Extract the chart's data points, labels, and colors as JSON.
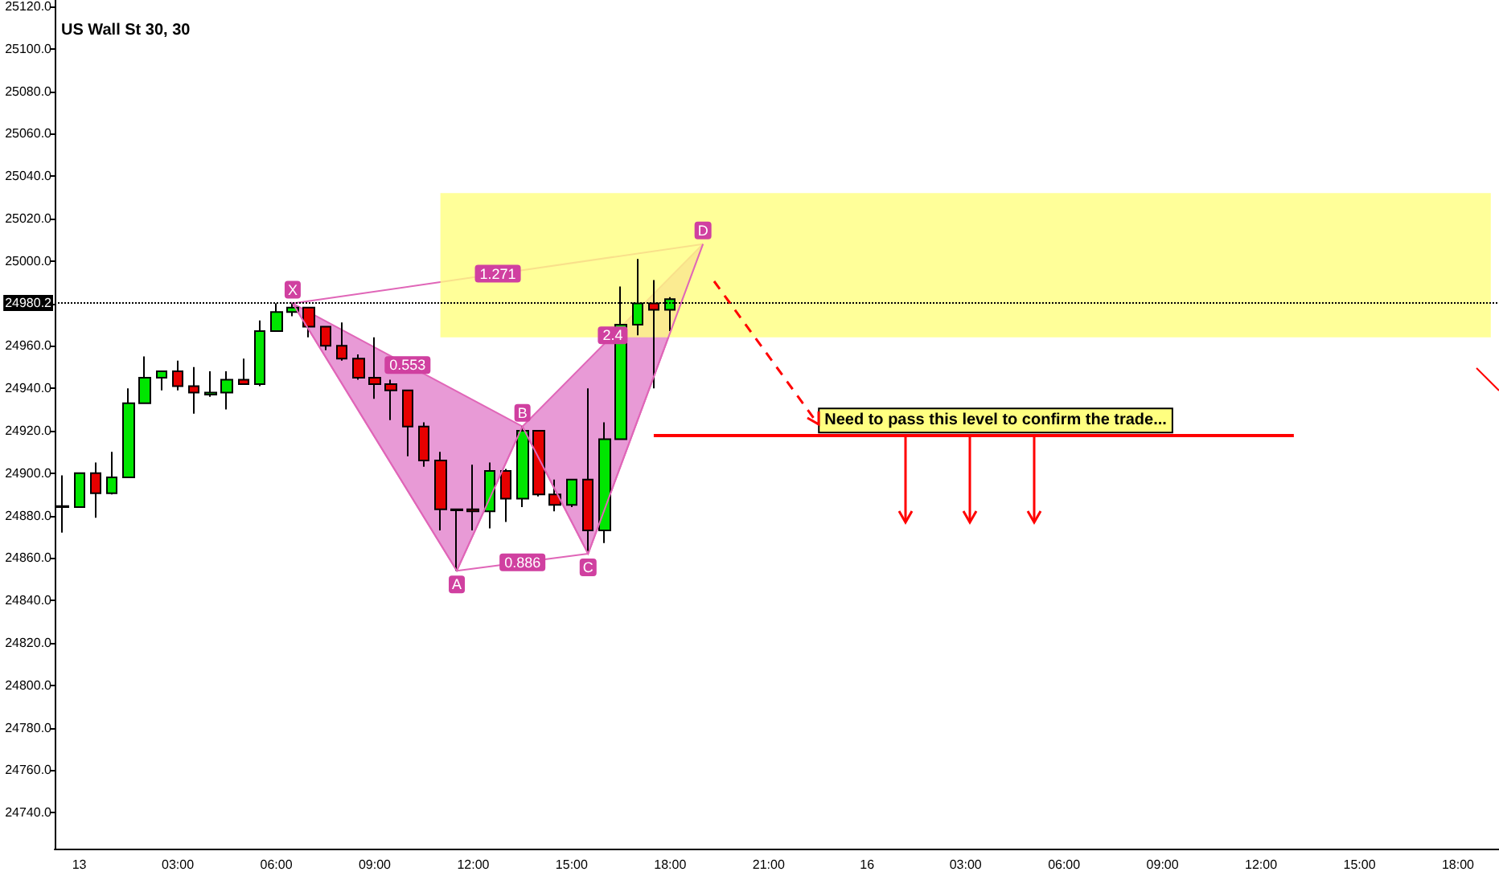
{
  "chart_data": {
    "type": "candlestick",
    "title": "US Wall St 30, 30",
    "categories": [
      null,
      "13",
      null,
      null,
      null,
      null,
      null,
      "03:00",
      null,
      null,
      null,
      null,
      null,
      "06:00",
      null,
      null,
      null,
      null,
      null,
      "09:00",
      null,
      null,
      null,
      null,
      null,
      "12:00",
      null,
      null,
      null,
      null,
      null,
      "15:00",
      null,
      null,
      null,
      null,
      null,
      "18:00",
      null,
      null,
      null,
      null,
      null,
      "21:00",
      null,
      null,
      null,
      null,
      null,
      "16",
      null,
      null,
      null,
      null,
      null,
      "03:00",
      null,
      null,
      null,
      null,
      null,
      "06:00",
      null,
      null,
      null,
      null,
      null,
      "09:00",
      null,
      null,
      null,
      null,
      null,
      "12:00",
      null,
      null,
      null,
      null,
      null,
      "15:00",
      null,
      null,
      null,
      null,
      null,
      "18:00",
      null,
      null
    ],
    "ohlc": [
      [
        24884,
        24899,
        24872,
        24884.5
      ],
      [
        24884,
        24900,
        24884,
        24900
      ],
      [
        24900,
        24905,
        24879,
        24890.5
      ],
      [
        24890.5,
        24910,
        24890,
        24898
      ],
      [
        24898,
        24940,
        24898,
        24933
      ],
      [
        24933,
        24955,
        24933,
        24945
      ],
      [
        24945,
        24948,
        24939,
        24948
      ],
      [
        24948,
        24953,
        24939,
        24941
      ],
      [
        24941,
        24950,
        24928,
        24938
      ],
      [
        24937,
        24948,
        24936,
        24938
      ],
      [
        24938,
        24948,
        24930,
        24944
      ],
      [
        24944,
        24954,
        24942,
        24942
      ],
      [
        24942,
        24972,
        24941,
        24967
      ],
      [
        24967,
        24980,
        24967,
        24976
      ],
      [
        24976,
        24980,
        24974,
        24978
      ],
      [
        24978,
        24978,
        24964,
        24969
      ],
      [
        24969,
        24969,
        24958,
        24960
      ],
      [
        24960,
        24971,
        24953,
        24954
      ],
      [
        24954,
        24956,
        24944,
        24945
      ],
      [
        24945,
        24964,
        24935,
        24942
      ],
      [
        24942,
        24944,
        24925,
        24939
      ],
      [
        24939,
        24939,
        24908,
        24922
      ],
      [
        24922,
        24924,
        24903,
        24906
      ],
      [
        24906,
        24910,
        24873,
        24883
      ],
      [
        24883,
        24883,
        24854,
        24882.5
      ],
      [
        24883,
        24904,
        24873,
        24882
      ],
      [
        24882,
        24905,
        24874,
        24901
      ],
      [
        24901,
        24902,
        24877,
        24888
      ],
      [
        24888,
        24922,
        24884,
        24920
      ],
      [
        24920,
        24920,
        24889,
        24890
      ],
      [
        24890,
        24897,
        24882,
        24885
      ],
      [
        24885,
        24897,
        24884,
        24897
      ],
      [
        24897,
        24940,
        24862,
        24873
      ],
      [
        24873,
        24924,
        24867,
        24916
      ],
      [
        24916,
        24988,
        24916,
        24970
      ],
      [
        24970,
        25001,
        24965,
        24980
      ],
      [
        24980,
        24991,
        24940,
        24977
      ],
      [
        24977,
        24983,
        24967,
        24982
      ],
      null,
      null,
      null,
      null,
      null,
      null,
      null,
      null,
      null,
      null,
      null,
      null,
      null,
      null,
      null,
      null,
      null,
      null,
      null,
      null,
      null,
      null,
      null,
      null,
      null,
      null,
      null,
      null,
      null,
      null,
      null,
      null,
      null,
      null,
      null,
      null,
      null,
      null,
      null,
      null,
      null,
      null,
      null,
      null,
      null,
      null,
      null,
      null,
      null,
      null
    ],
    "colors": [
      "#00e600",
      "#00e600",
      "#e60000",
      "#00e600",
      "#00e600",
      "#00e600",
      "#00e600",
      "#e60000",
      "#e60000",
      "#00e600",
      "#00e600",
      "#e60000",
      "#00e600",
      "#00e600",
      "#00e600",
      "#e60000",
      "#e60000",
      "#e60000",
      "#e60000",
      "#e60000",
      "#e60000",
      "#e60000",
      "#e60000",
      "#e60000",
      "#e60000",
      "#e60000",
      "#00e600",
      "#e60000",
      "#00e600",
      "#e60000",
      "#e60000",
      "#00e600",
      "#e60000",
      "#00e600",
      "#00e600",
      "#00e600",
      "#e60000",
      "#00e600",
      null,
      null,
      null,
      null,
      null,
      null,
      null,
      null,
      null,
      null,
      null,
      null,
      null,
      null,
      null,
      null,
      null,
      null,
      null,
      null,
      null,
      null,
      null,
      null,
      null,
      null,
      null,
      null,
      null,
      null,
      null,
      null,
      null,
      null,
      null,
      null,
      null,
      null,
      null,
      null,
      null,
      null,
      null,
      null,
      null,
      null,
      null,
      null,
      null,
      null
    ],
    "series": [
      {
        "type": "line",
        "color": "#e066b8",
        "values": [
          null,
          null,
          null,
          null,
          null,
          null,
          null,
          null,
          null,
          null,
          null,
          null,
          null,
          null,
          24980,
          null,
          null,
          null,
          null,
          null,
          null,
          null,
          null,
          null,
          24854,
          null,
          null,
          null,
          24922,
          null,
          null,
          null,
          24862,
          null,
          null,
          null,
          null,
          null,
          null,
          25008,
          null,
          null,
          null,
          null,
          null,
          null,
          null,
          null,
          null,
          null,
          null,
          null,
          null,
          null,
          null,
          null,
          null,
          null,
          null,
          null,
          null,
          null,
          null,
          null,
          null,
          null,
          null,
          null,
          null,
          null,
          null,
          null,
          null,
          null,
          null,
          null,
          null,
          null,
          null,
          null,
          null,
          null,
          null,
          null,
          null,
          null,
          null,
          null
        ],
        "value_labels": [
          null,
          null,
          null,
          null,
          null,
          null,
          null,
          null,
          null,
          null,
          null,
          null,
          null,
          null,
          "X",
          null,
          null,
          null,
          null,
          null,
          null,
          null,
          null,
          null,
          "A",
          null,
          null,
          null,
          "B",
          null,
          null,
          null,
          "C",
          null,
          null,
          null,
          null,
          null,
          null,
          "D",
          null,
          null,
          null,
          null,
          null,
          null,
          null,
          null,
          null,
          null,
          null,
          null,
          null,
          null,
          null,
          null,
          null,
          null,
          null,
          null,
          null,
          null,
          null,
          null,
          null,
          null,
          null,
          null,
          null,
          null,
          null,
          null,
          null,
          null,
          null,
          null,
          null,
          null,
          null,
          null,
          null,
          null,
          null,
          null,
          null,
          null,
          null,
          null
        ]
      }
    ],
    "annotations": [
      "1.271",
      "0.553",
      "0.886",
      "2.4"
    ],
    "ref_lines": [
      {
        "axis": "y",
        "value": 24980.2,
        "label": "24980.2",
        "color": "#000000",
        "line_style": "dotted"
      },
      {
        "axis": "y",
        "value": 24918,
        "label": "Need to pass this level to confirm the trade...",
        "color": "#ff0000",
        "line_style": "solid"
      }
    ],
    "bands": [
      {
        "axis": "y",
        "from": 24964,
        "to": 25032,
        "color": "#ffff80"
      }
    ],
    "ylim": [
      24723,
      25123
    ],
    "yticks": [
      {
        "value": 24740,
        "label": "24740.0"
      },
      {
        "value": 24760,
        "label": "24760.0"
      },
      {
        "value": 24780,
        "label": "24780.0"
      },
      {
        "value": 24800,
        "label": "24800.0"
      },
      {
        "value": 24820,
        "label": "24820.0"
      },
      {
        "value": 24840,
        "label": "24840.0"
      },
      {
        "value": 24860,
        "label": "24860.0"
      },
      {
        "value": 24880,
        "label": "24880.0"
      },
      {
        "value": 24900,
        "label": "24900.0"
      },
      {
        "value": 24920,
        "label": "24920.0"
      },
      {
        "value": 24940,
        "label": "24940.0"
      },
      {
        "value": 24960,
        "label": "24960.0"
      },
      {
        "value": 24980,
        "label": null
      },
      {
        "value": 25000,
        "label": "25000.0"
      },
      {
        "value": 25020,
        "label": "25020.0"
      },
      {
        "value": 25040,
        "label": "25040.0"
      },
      {
        "value": 25060,
        "label": "25060.0"
      },
      {
        "value": 25080,
        "label": "25080.0"
      },
      {
        "value": 25100,
        "label": "25100.0"
      },
      {
        "value": 25120,
        "label": "25120.0"
      }
    ]
  }
}
